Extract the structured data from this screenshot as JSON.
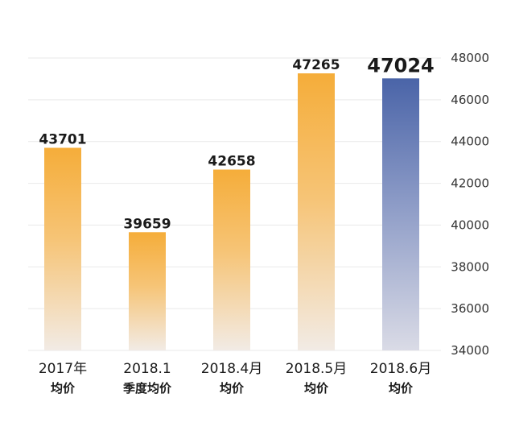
{
  "chart_data": {
    "type": "bar",
    "categories": [
      {
        "line1": "2017年",
        "line2": "均价"
      },
      {
        "line1": "2018.1",
        "line2": "季度均价"
      },
      {
        "line1": "2018.4月",
        "line2": "均价"
      },
      {
        "line1": "2018.5月",
        "line2": "均价"
      },
      {
        "line1": "2018.6月",
        "line2": "均价"
      }
    ],
    "values": [
      43701,
      39659,
      42658,
      47265,
      47024
    ],
    "value_labels": [
      "43701",
      "39659",
      "42658",
      "47265",
      "47024"
    ],
    "highlight_index": 4,
    "ylim": [
      34000,
      48000
    ],
    "yticks": [
      34000,
      36000,
      38000,
      40000,
      42000,
      44000,
      46000,
      48000
    ],
    "ytick_labels": [
      "34000",
      "36000",
      "38000",
      "40000",
      "42000",
      "44000",
      "46000",
      "48000"
    ],
    "y_axis_side": "right",
    "grid": true,
    "colors": {
      "bar_top": "#f5ad3a",
      "bar_bottom": "#f2ebe5",
      "highlight_top": "#4a64a8",
      "highlight_bottom": "#dadbe6",
      "grid": "#e9e9e9"
    }
  }
}
